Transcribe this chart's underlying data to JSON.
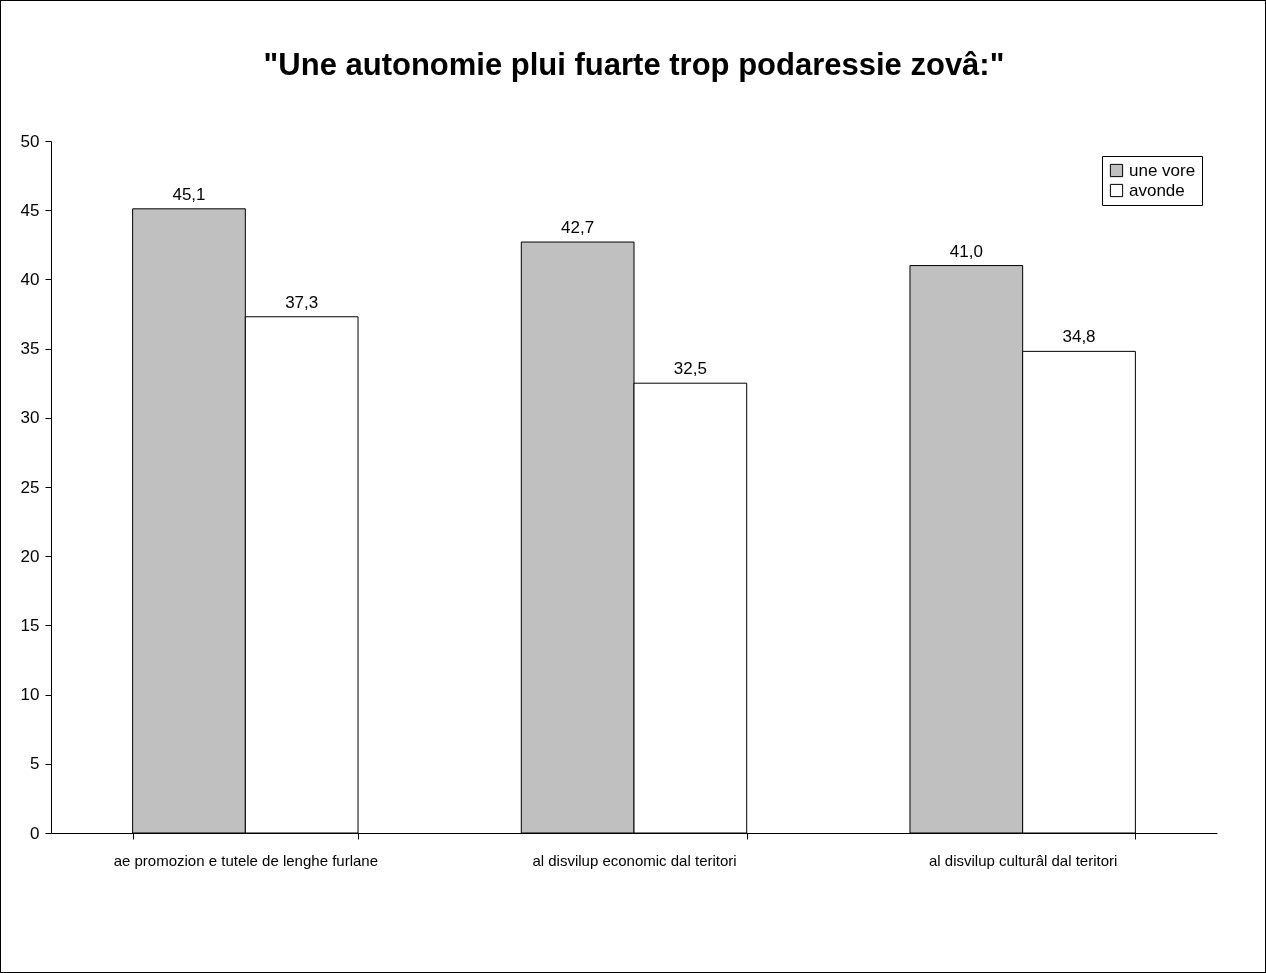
{
  "chart_data": {
    "type": "bar",
    "title": "\"Une autonomie plui fuarte trop podaressie zovâ:\"",
    "categories": [
      "ae promozion e tutele de lenghe furlane",
      "al disvilup economic dal teritori",
      "al disvilup culturâl dal teritori"
    ],
    "series": [
      {
        "name": "une vore",
        "color": "#c0c0c0",
        "values": [
          45.1,
          42.7,
          41.0
        ],
        "value_labels": [
          "45,1",
          "42,7",
          "41,0"
        ]
      },
      {
        "name": "avonde",
        "color": "#ffffff",
        "values": [
          37.3,
          32.5,
          34.8
        ],
        "value_labels": [
          "37,3",
          "32,5",
          "34,8"
        ]
      }
    ],
    "ylim": [
      0,
      50
    ],
    "yticks": [
      0,
      5,
      10,
      15,
      20,
      25,
      30,
      35,
      40,
      45,
      50
    ],
    "grid": false,
    "legend": "top right"
  }
}
